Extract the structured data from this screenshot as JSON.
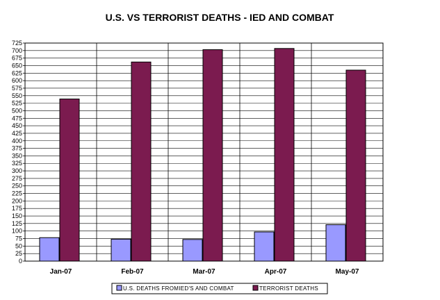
{
  "chart_data": {
    "type": "bar",
    "title": "U.S. VS TERRORIST DEATHS - IED AND COMBAT",
    "categories": [
      "Jan-07",
      "Feb-07",
      "Mar-07",
      "Apr-07",
      "May-07"
    ],
    "series": [
      {
        "name": "U.S. DEATHS FROMIED'S AND COMBAT",
        "values": [
          78,
          73,
          72,
          97,
          121
        ],
        "color": "#9999FF"
      },
      {
        "name": "TERRORIST DEATHS",
        "values": [
          539,
          662,
          703,
          707,
          635
        ],
        "color": "#7B1B4F"
      }
    ],
    "ylim": [
      0,
      725
    ],
    "ytick_step": 25,
    "yticks": [
      "0",
      "25",
      "50",
      "75",
      "100",
      "125",
      "150",
      "175",
      "200",
      "225",
      "250",
      "275",
      "300",
      "325",
      "350",
      "375",
      "400",
      "425",
      "450",
      "475",
      "500",
      "525",
      "550",
      "575",
      "600",
      "625",
      "650",
      "675",
      "700",
      "725"
    ],
    "grid": true,
    "legend_position": "bottom-center",
    "xlabel": "",
    "ylabel": ""
  }
}
